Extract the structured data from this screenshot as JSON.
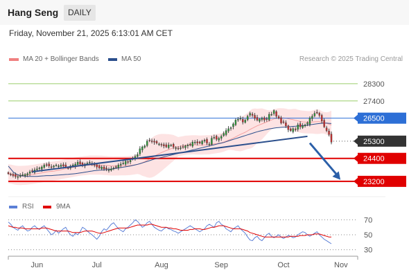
{
  "header": {
    "instrument": "Hang Seng",
    "timeframe": "DAILY"
  },
  "timestamp": "Friday, November 21, 2025 6:13:01 AM CET",
  "legend": {
    "bb_label": "MA 20 + Bollinger Bands",
    "ma50_label": "MA 50",
    "credit": "Research © 2025 Trading Central",
    "bb_color": "#f08080",
    "ma50_color": "#2b4f8c"
  },
  "rsi_legend": {
    "rsi_label": "RSI",
    "ma_label": "9MA",
    "rsi_color": "#5b7fd6",
    "ma_color": "#e00000"
  },
  "chart_data": [
    {
      "type": "candlestick",
      "title": "Hang Seng",
      "ylim": [
        22400,
        29200
      ],
      "x_ticks": [
        "Jun",
        "Jul",
        "Aug",
        "Sep",
        "Oct",
        "Nov"
      ],
      "levels": [
        {
          "value": 28300,
          "label": "28300",
          "color": "#9acd6a",
          "kind": "resistance"
        },
        {
          "value": 27400,
          "label": "27400",
          "color": "#9acd6a",
          "kind": "resistance"
        },
        {
          "value": 26500,
          "label": "26500",
          "color": "#2d6fd6",
          "kind": "pivot"
        },
        {
          "value": 25300,
          "label": "25300",
          "color": "#333333",
          "kind": "last"
        },
        {
          "value": 24400,
          "label": "24400",
          "color": "#e00000",
          "kind": "support"
        },
        {
          "value": 23200,
          "label": "23200",
          "color": "#e00000",
          "kind": "support"
        }
      ],
      "series": [
        {
          "name": "Hang Seng",
          "close": [
            23600,
            23550,
            23500,
            23450,
            23450,
            23500,
            23550,
            23560,
            23600,
            23700,
            23700,
            23800,
            23850,
            23900,
            23950,
            24050,
            24050,
            24000,
            23950,
            24000,
            24050,
            24000,
            24050,
            24000,
            23950,
            23900,
            24000,
            24050,
            24100,
            24200,
            24100,
            24050,
            24100,
            24150,
            24200,
            24100,
            24050,
            23950,
            23900,
            23950,
            23850,
            23850,
            23800,
            23850,
            23900,
            23950,
            24050,
            24100,
            24150,
            24250,
            24200,
            24300,
            24400,
            24500,
            24600,
            24900,
            25000,
            25050,
            25300,
            25350,
            25300,
            25250,
            25200,
            25150,
            25100,
            25050,
            25000,
            25100,
            25100,
            25000,
            24950,
            24900,
            24950,
            25000,
            25050,
            25100,
            25100,
            25250,
            25250,
            25200,
            25200,
            25300,
            25350,
            25200,
            25150,
            25450,
            25500,
            25400,
            25450,
            25550,
            25700,
            25850,
            25950,
            26000,
            26200,
            26400,
            26450,
            26500,
            26300,
            26400,
            26600,
            26750,
            26650,
            26500,
            26400,
            26450,
            26500,
            26400,
            26450,
            26700,
            26700,
            26900,
            26600,
            26500,
            26250,
            26300,
            26100,
            25900,
            25850,
            25950,
            25900,
            26150,
            26050,
            26100,
            26150,
            26250,
            26500,
            26600,
            26750,
            26800,
            26650,
            26350,
            26050,
            25850,
            25650,
            25250
          ]
        },
        {
          "name": "MA 50",
          "values": [
            24000,
            23850,
            23700,
            23600,
            23550,
            23500,
            23480,
            23470,
            23460,
            23460,
            23460,
            23460,
            23460,
            23470,
            23480,
            23490,
            23500,
            23500,
            23500,
            23510,
            23520,
            23530,
            23540,
            23550,
            23560,
            23570,
            23580,
            23590,
            23600,
            23620,
            23640,
            23660,
            23680,
            23700,
            23720,
            23740,
            23760,
            23770,
            23780,
            23790,
            23800,
            23810,
            23820,
            23840,
            23860,
            23880,
            23900,
            23920,
            23940,
            23960,
            23980,
            24000,
            24030,
            24060,
            24090,
            24120,
            24160,
            24200,
            24240,
            24280,
            24320,
            24360,
            24390,
            24420,
            24450,
            24480,
            24510,
            24540,
            24570,
            24600,
            24630,
            24660,
            24690,
            24720,
            24750,
            24780,
            24810,
            24840,
            24870,
            24900,
            24930,
            24960,
            24990,
            25020,
            25050,
            25080,
            25110,
            25140,
            25170,
            25200,
            25230,
            25270,
            25310,
            25350,
            25390,
            25430,
            25470,
            25510,
            25550,
            25590,
            25630,
            25670,
            25710,
            25750,
            25790,
            25820,
            25850,
            25880,
            25910,
            25940,
            25960,
            25980,
            26000,
            26010,
            26020,
            26030,
            26040,
            26050,
            26060,
            26070,
            26080,
            26090,
            26100,
            26110,
            26120,
            26130,
            26150,
            26170,
            26190,
            26210,
            26220,
            26230,
            26240,
            26240,
            26230,
            26220
          ]
        }
      ],
      "trendlines": [
        {
          "from": {
            "x_index": 10,
            "value": 23700
          },
          "to": {
            "x_index": 125,
            "value": 25550
          },
          "color": "#2b4f8c"
        }
      ],
      "forecast_arrow": {
        "from": {
          "x_index": 126,
          "value": 25200
        },
        "to": {
          "x_index": 133,
          "value": 23280
        },
        "color": "#2b5fa8"
      }
    },
    {
      "type": "line",
      "title": "RSI",
      "ylim": [
        25,
        75
      ],
      "levels": [
        70,
        50,
        30
      ],
      "series": [
        {
          "name": "RSI",
          "values": [
            67,
            64,
            60,
            58,
            56,
            60,
            62,
            58,
            55,
            56,
            60,
            62,
            59,
            57,
            60,
            62,
            58,
            54,
            50,
            52,
            56,
            52,
            55,
            58,
            60,
            54,
            50,
            48,
            52,
            50,
            54,
            60,
            58,
            55,
            52,
            50,
            47,
            44,
            48,
            54,
            58,
            56,
            60,
            64,
            66,
            62,
            58,
            56,
            54,
            58,
            60,
            63,
            66,
            70,
            68,
            64,
            60,
            62,
            66,
            68,
            64,
            60,
            58,
            56,
            55,
            58,
            60,
            58,
            57,
            55,
            54,
            52,
            54,
            56,
            58,
            60,
            62,
            60,
            58,
            56,
            54,
            56,
            58,
            62,
            64,
            62,
            60,
            66,
            68,
            64,
            62,
            58,
            56,
            54,
            58,
            60,
            62,
            58,
            55,
            52,
            47,
            43,
            42,
            46,
            48,
            44,
            42,
            46,
            50,
            52,
            48,
            46,
            48,
            50,
            47,
            45,
            47,
            49,
            48,
            46,
            47,
            50,
            52,
            54,
            53,
            50,
            48,
            50,
            52,
            54,
            50,
            47,
            44,
            42,
            40,
            38
          ]
        },
        {
          "name": "9MA",
          "values": [
            62,
            61,
            60,
            60,
            59,
            59,
            59,
            58,
            58,
            58,
            58,
            58,
            58,
            58,
            59,
            59,
            59,
            58,
            57,
            56,
            55,
            55,
            55,
            55,
            55,
            55,
            54,
            53,
            53,
            53,
            53,
            54,
            55,
            55,
            55,
            55,
            54,
            53,
            52,
            52,
            53,
            54,
            55,
            56,
            57,
            58,
            59,
            59,
            59,
            59,
            59,
            60,
            61,
            62,
            63,
            63,
            63,
            63,
            63,
            64,
            64,
            63,
            62,
            61,
            60,
            60,
            60,
            59,
            59,
            58,
            58,
            57,
            56,
            56,
            56,
            56,
            57,
            57,
            58,
            58,
            58,
            57,
            57,
            58,
            59,
            60,
            60,
            61,
            62,
            62,
            62,
            61,
            60,
            59,
            58,
            58,
            58,
            58,
            57,
            56,
            55,
            53,
            52,
            51,
            50,
            49,
            48,
            47,
            47,
            47,
            47,
            47,
            47,
            47,
            47,
            47,
            47,
            47,
            48,
            48,
            48,
            48,
            49,
            49,
            49,
            50,
            50,
            50,
            51,
            51,
            51,
            50,
            49,
            48,
            47,
            47
          ]
        }
      ]
    }
  ]
}
